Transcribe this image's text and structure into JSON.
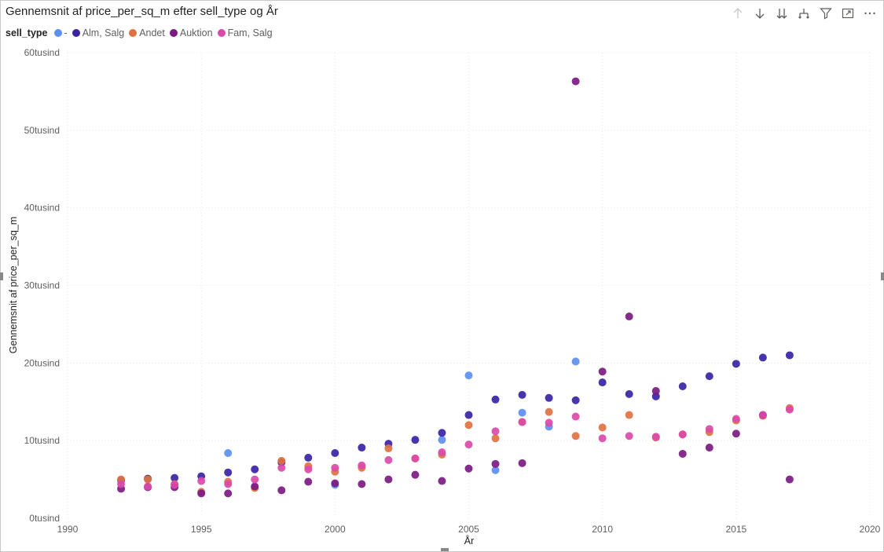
{
  "toolbar": {
    "icons": [
      "arrow-up-icon",
      "arrow-down-icon",
      "double-arrow-down-icon",
      "hierarchy-icon",
      "filter-icon",
      "focus-mode-icon",
      "more-options-icon"
    ]
  },
  "colors": {
    "-": "#5b8ff0",
    "Alm, Salg": "#3a23a5",
    "Andet": "#e07241",
    "Auktion": "#7b1a83",
    "Fam, Salg": "#da4aa8",
    "gridline": "#e8e8e8"
  },
  "chart_data": {
    "type": "scatter",
    "title": "Gennemsnit af price_per_sq_m efter sell_type og År",
    "xlabel": "År",
    "ylabel": "Gennemsnit af price_per_sq_m",
    "legend_title": "sell_type",
    "legend_position": "top-left",
    "grid": true,
    "xlim": [
      1990,
      2020
    ],
    "ylim": [
      0,
      60000
    ],
    "x_ticks": [
      1990,
      1995,
      2000,
      2005,
      2010,
      2015,
      2020
    ],
    "y_ticks": [
      0,
      10000,
      20000,
      30000,
      40000,
      50000,
      60000
    ],
    "y_tick_labels": [
      "0tusind",
      "10tusind",
      "20tusind",
      "30tusind",
      "40tusind",
      "50tusind",
      "60tusind"
    ],
    "series": [
      {
        "name": "-",
        "points": [
          [
            1996,
            8400
          ],
          [
            2000,
            4300
          ],
          [
            2004,
            10100
          ],
          [
            2005,
            18400
          ],
          [
            2006,
            6200
          ],
          [
            2007,
            13600
          ],
          [
            2008,
            11800
          ],
          [
            2009,
            20200
          ]
        ]
      },
      {
        "name": "Alm, Salg",
        "points": [
          [
            1992,
            4900
          ],
          [
            1993,
            5100
          ],
          [
            1994,
            5200
          ],
          [
            1995,
            5400
          ],
          [
            1996,
            5900
          ],
          [
            1997,
            6300
          ],
          [
            1998,
            7200
          ],
          [
            1999,
            7800
          ],
          [
            2000,
            8400
          ],
          [
            2001,
            9100
          ],
          [
            2002,
            9600
          ],
          [
            2003,
            10100
          ],
          [
            2004,
            11000
          ],
          [
            2005,
            13300
          ],
          [
            2006,
            15300
          ],
          [
            2007,
            15900
          ],
          [
            2008,
            15500
          ],
          [
            2009,
            15200
          ],
          [
            2010,
            17500
          ],
          [
            2011,
            16000
          ],
          [
            2012,
            15700
          ],
          [
            2013,
            17000
          ],
          [
            2014,
            18300
          ],
          [
            2015,
            19900
          ],
          [
            2016,
            20700
          ],
          [
            2017,
            21000
          ]
        ]
      },
      {
        "name": "Andet",
        "points": [
          [
            1992,
            5000
          ],
          [
            1993,
            5000
          ],
          [
            1994,
            4400
          ],
          [
            1995,
            3400
          ],
          [
            1996,
            4700
          ],
          [
            1997,
            3900
          ],
          [
            1998,
            7400
          ],
          [
            1999,
            6700
          ],
          [
            2000,
            6000
          ],
          [
            2001,
            6500
          ],
          [
            2002,
            9000
          ],
          [
            2003,
            7700
          ],
          [
            2004,
            8200
          ],
          [
            2005,
            12000
          ],
          [
            2006,
            10300
          ],
          [
            2007,
            12400
          ],
          [
            2008,
            13700
          ],
          [
            2009,
            10600
          ],
          [
            2010,
            11700
          ],
          [
            2011,
            13300
          ],
          [
            2012,
            10400
          ],
          [
            2013,
            10800
          ],
          [
            2014,
            11100
          ],
          [
            2015,
            12600
          ],
          [
            2016,
            13200
          ],
          [
            2017,
            14200
          ]
        ]
      },
      {
        "name": "Auktion",
        "points": [
          [
            1992,
            3800
          ],
          [
            1993,
            4000
          ],
          [
            1994,
            4000
          ],
          [
            1995,
            3200
          ],
          [
            1996,
            3200
          ],
          [
            1997,
            4100
          ],
          [
            1998,
            3600
          ],
          [
            1999,
            4700
          ],
          [
            2000,
            4500
          ],
          [
            2001,
            4400
          ],
          [
            2002,
            5000
          ],
          [
            2003,
            5600
          ],
          [
            2004,
            4800
          ],
          [
            2005,
            6400
          ],
          [
            2006,
            7000
          ],
          [
            2007,
            7100
          ],
          [
            2009,
            56300
          ],
          [
            2010,
            18900
          ],
          [
            2011,
            26000
          ],
          [
            2012,
            16400
          ],
          [
            2013,
            8300
          ],
          [
            2014,
            9100
          ],
          [
            2015,
            10900
          ],
          [
            2016,
            13300
          ],
          [
            2017,
            5000
          ]
        ]
      },
      {
        "name": "Fam, Salg",
        "points": [
          [
            1992,
            4400
          ],
          [
            1993,
            4100
          ],
          [
            1994,
            4300
          ],
          [
            1995,
            4800
          ],
          [
            1996,
            4400
          ],
          [
            1997,
            5000
          ],
          [
            1998,
            6500
          ],
          [
            1999,
            6300
          ],
          [
            2000,
            6500
          ],
          [
            2001,
            6800
          ],
          [
            2002,
            7500
          ],
          [
            2003,
            7700
          ],
          [
            2004,
            8500
          ],
          [
            2005,
            9500
          ],
          [
            2006,
            11200
          ],
          [
            2007,
            12400
          ],
          [
            2008,
            12300
          ],
          [
            2009,
            13100
          ],
          [
            2010,
            10300
          ],
          [
            2011,
            10600
          ],
          [
            2012,
            10500
          ],
          [
            2013,
            10800
          ],
          [
            2014,
            11500
          ],
          [
            2015,
            12800
          ],
          [
            2016,
            13300
          ],
          [
            2017,
            14000
          ]
        ]
      }
    ]
  }
}
